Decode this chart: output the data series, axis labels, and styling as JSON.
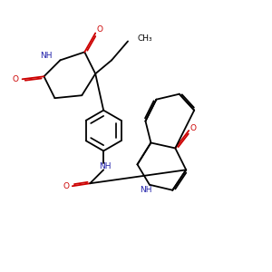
{
  "bg_color": "#ffffff",
  "bond_color": "#000000",
  "n_color": "#2222aa",
  "o_color": "#cc0000",
  "lw": 1.3,
  "dbo": 0.06,
  "xlim": [
    0,
    10
  ],
  "ylim": [
    0,
    10
  ]
}
